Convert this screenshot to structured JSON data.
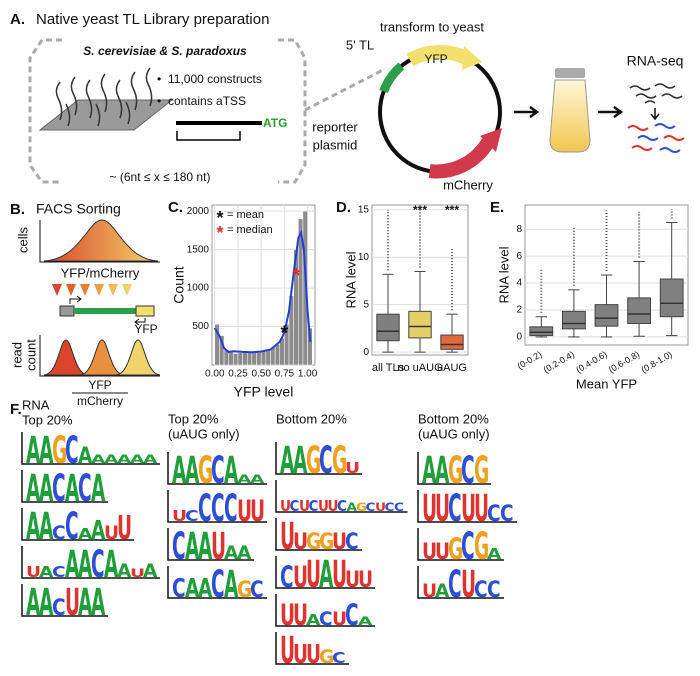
{
  "panel_labels": [
    "A.",
    "B.",
    "C.",
    "D.",
    "E.",
    "F."
  ],
  "panel_a": {
    "title": "Native yeast TL Library preparation",
    "species": "S. cerevisiae & S. paradoxus",
    "bullets": [
      "11,000 constructs",
      "contains aTSS"
    ],
    "start_codon": "ATG",
    "length_range": "~ (6nt ≤ x ≤ 180 nt)",
    "transform": "transform to yeast",
    "tl": "5' TL",
    "yfp": "YFP",
    "mcherry": "mCherry",
    "plasmid": [
      "reporter",
      "plasmid"
    ],
    "rnaseq": "RNA-seq"
  },
  "panel_b": {
    "title": "FACS Sorting",
    "cells": "cells",
    "ratio": "YFP/mCherry",
    "yfp": "YFP",
    "read_count": [
      "read",
      "count"
    ],
    "fraction_top": "YFP",
    "fraction_bottom": "mCherry"
  },
  "chart_data": [
    {
      "type": "histogram",
      "xlabel": "YFP level",
      "ylabel": "Count",
      "color": "#8c8c8c",
      "grid": true,
      "bins": [
        0,
        0.05,
        0.1,
        0.15,
        0.2,
        0.25,
        0.3,
        0.35,
        0.4,
        0.45,
        0.5,
        0.55,
        0.6,
        0.65,
        0.7,
        0.75,
        0.8,
        0.85,
        0.9,
        0.95,
        1.0,
        1.05
      ],
      "values": [
        530,
        380,
        200,
        170,
        150,
        160,
        170,
        160,
        160,
        170,
        190,
        200,
        230,
        270,
        350,
        530,
        900,
        1500,
        1900,
        2000,
        480
      ],
      "xlim": [
        -0.03,
        1.08
      ],
      "ylim": [
        0,
        2080
      ],
      "xticks": [
        {
          "value": 0,
          "label": "0.00"
        },
        {
          "value": 0.25,
          "label": "0.25"
        },
        {
          "value": 0.5,
          "label": "0.50"
        },
        {
          "value": 0.75,
          "label": "0.75"
        },
        {
          "value": 1.0,
          "label": "1.00"
        }
      ],
      "yticks": [
        500,
        1000,
        1500,
        2000
      ],
      "kde": {
        "color": "#1f3fd6",
        "x": [
          0,
          0.05,
          0.1,
          0.15,
          0.2,
          0.3,
          0.4,
          0.5,
          0.6,
          0.7,
          0.75,
          0.8,
          0.85,
          0.9,
          0.93,
          0.96,
          1.0,
          1.03
        ],
        "values": [
          480,
          380,
          220,
          170,
          180,
          170,
          165,
          175,
          200,
          300,
          420,
          700,
          1200,
          1650,
          1720,
          1500,
          700,
          300
        ]
      },
      "markers": [
        {
          "marker": "*",
          "label": "= mean",
          "color": "#111111",
          "x": 0.75,
          "y": 450
        },
        {
          "marker": "*",
          "label": "= median",
          "color": "#e0322e",
          "x": 0.88,
          "y": 1200
        }
      ]
    },
    {
      "type": "box",
      "ylabel": "RNA level",
      "ylim": [
        -0.3,
        15.5
      ],
      "yticks": [
        0,
        5,
        10,
        15
      ],
      "grid": true,
      "categories": [
        "all TLs",
        "no uAUG",
        "uAUG"
      ],
      "colors": [
        "#7f7f7f",
        "#e3cf6a",
        "#e0683a"
      ],
      "significance": [
        null,
        "***",
        "***"
      ],
      "boxes": [
        {
          "whislo": 0,
          "q1": 1.2,
          "med": 2.2,
          "q3": 4.0,
          "whishi": 8.2,
          "fliers_max": 15
        },
        {
          "whislo": 0,
          "q1": 1.5,
          "med": 2.7,
          "q3": 4.3,
          "whishi": 8.5,
          "fliers_max": 15
        },
        {
          "whislo": 0,
          "q1": 0.3,
          "med": 0.8,
          "q3": 1.8,
          "whishi": 4.0,
          "fliers_max": 11
        }
      ]
    },
    {
      "type": "box",
      "ylabel": "RNA level",
      "xlabel": "Mean YFP",
      "ylim": [
        -0.6,
        9.8
      ],
      "yticks": [
        0,
        2,
        4,
        6,
        8
      ],
      "grid": true,
      "categories": [
        "(0-0.2)",
        "(0.2-0.4)",
        "(0.4-0.6)",
        "(0.6-0.8)",
        "(0.8-1.0)"
      ],
      "colors": [
        "#808080",
        "#808080",
        "#808080",
        "#808080",
        "#808080"
      ],
      "boxes": [
        {
          "whislo": 0,
          "q1": 0.1,
          "med": 0.35,
          "q3": 0.75,
          "whishi": 1.5,
          "fliers_max": 5.0
        },
        {
          "whislo": 0,
          "q1": 0.6,
          "med": 1.0,
          "q3": 1.9,
          "whishi": 3.5,
          "fliers_max": 8.2
        },
        {
          "whislo": 0,
          "q1": 0.8,
          "med": 1.4,
          "q3": 2.4,
          "whishi": 4.6,
          "fliers_max": 9.4
        },
        {
          "whislo": 0.05,
          "q1": 1.0,
          "med": 1.7,
          "q3": 2.9,
          "whishi": 5.6,
          "fliers_max": 9.3
        },
        {
          "whislo": 0.1,
          "q1": 1.5,
          "med": 2.5,
          "q3": 4.3,
          "whishi": 8.5,
          "fliers_max": 9.5
        }
      ]
    }
  ],
  "panel_f": {
    "columns": [
      {
        "title": [
          "RNA",
          "Top 20%"
        ],
        "logos": [
          {
            "letters": "AAGCAAAAAA",
            "heights": [
              1,
              1,
              1,
              1,
              0.6,
              0.3,
              0.3,
              0.3,
              0.3,
              0.3
            ]
          },
          {
            "letters": "AACACA",
            "heights": [
              1,
              1,
              1,
              1,
              1,
              1
            ]
          },
          {
            "letters": "AACCAAUU",
            "heights": [
              1,
              1,
              0.5,
              1,
              0.4,
              0.7,
              0.5,
              0.9
            ]
          },
          {
            "letters": "UACAACAAUA",
            "heights": [
              0.4,
              0.4,
              0.4,
              1,
              1,
              1,
              1,
              0.5,
              0.3,
              0.5
            ]
          },
          {
            "letters": "AACUAA",
            "heights": [
              1,
              1,
              0.6,
              1,
              1,
              1
            ]
          }
        ]
      },
      {
        "title": [
          "Top 20%",
          "(uAUG only)"
        ],
        "logos": [
          {
            "letters": "AAGCAAA",
            "heights": [
              1,
              1,
              1,
              1,
              1,
              0.3,
              0.3
            ]
          },
          {
            "letters": "UCCCCUU",
            "heights": [
              0.4,
              0.4,
              1,
              1,
              1,
              0.8,
              0.8
            ]
          },
          {
            "letters": "CAAUAA",
            "heights": [
              1,
              1,
              1,
              1,
              0.5,
              0.5
            ]
          },
          {
            "letters": "CAACAGC",
            "heights": [
              0.7,
              0.7,
              0.7,
              1,
              1,
              0.6,
              0.6
            ]
          }
        ]
      },
      {
        "title": [
          "Bottom 20%"
        ],
        "logos": [
          {
            "letters": "AAGCGU",
            "heights": [
              1,
              1,
              1,
              1,
              1,
              0.4
            ]
          },
          {
            "letters": "UCUCUUCAGCUCC",
            "heights": [
              0.4,
              0.4,
              0.4,
              0.4,
              0.4,
              0.4,
              0.4,
              0.3,
              0.3,
              0.3,
              0.3,
              0.3,
              0.3
            ]
          },
          {
            "letters": "UUGGUC",
            "heights": [
              1,
              0.6,
              0.6,
              0.6,
              0.6,
              0.6
            ]
          },
          {
            "letters": "CUUAUUU",
            "heights": [
              0.8,
              0.8,
              1,
              1,
              1,
              0.6,
              0.6
            ]
          },
          {
            "letters": "UUACUCA",
            "heights": [
              0.8,
              0.8,
              0.4,
              0.5,
              0.5,
              0.8,
              0.3
            ]
          },
          {
            "letters": "UUUGC",
            "heights": [
              1,
              0.7,
              0.7,
              0.5,
              0.4
            ]
          }
        ]
      },
      {
        "title": [
          "Bottom 20%",
          "(uAUG only)"
        ],
        "logos": [
          {
            "letters": "AAGCG",
            "heights": [
              1,
              1,
              1,
              1,
              1
            ]
          },
          {
            "letters": "UUCUUCC",
            "heights": [
              1,
              1,
              1,
              1,
              1,
              0.6,
              0.6
            ]
          },
          {
            "letters": "UUGCGA",
            "heights": [
              0.6,
              0.6,
              0.8,
              1,
              1,
              0.4
            ]
          },
          {
            "letters": "UACUCC",
            "heights": [
              0.5,
              0.5,
              1,
              1,
              0.6,
              0.6
            ]
          }
        ]
      }
    ]
  }
}
